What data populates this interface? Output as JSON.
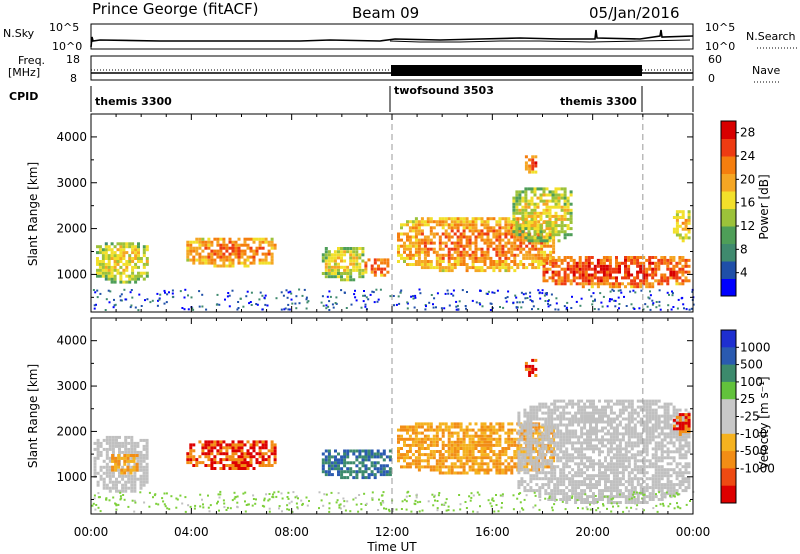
{
  "header": {
    "station": "Prince George (fitACF)",
    "beam": "Beam 09",
    "date": "05/Jan/2016"
  },
  "panels": {
    "nsky": {
      "label": "N.Sky",
      "left_ticks": [
        "10^5",
        "10^0"
      ],
      "right_label": "N.Search",
      "right_ticks": [
        "10^5",
        "10^0"
      ]
    },
    "freq": {
      "label_line1": "Freq.",
      "label_line2": "[MHz]",
      "left_ticks": [
        "18",
        "8"
      ],
      "right_label": "Nave",
      "right_ticks": [
        "60",
        "0"
      ]
    },
    "cpid": {
      "label": "CPID",
      "segments": [
        "themis 3300",
        "twofsound 3503",
        "themis 3300"
      ]
    }
  },
  "colors": {
    "power_scale": [
      "#0000ff",
      "#1f4fa8",
      "#3f8a6e",
      "#4e9e58",
      "#9cc23a",
      "#f2e02a",
      "#f5a623",
      "#f57e0e",
      "#ee3b12",
      "#d80000"
    ],
    "velocity_scale": [
      "#1e2fd0",
      "#2a5ab0",
      "#3c8a6c",
      "#62c23c",
      "#c8c8c8",
      "#c8c8c8",
      "#f5b21f",
      "#f28d15",
      "#ee4a12",
      "#dd0000"
    ],
    "ground_scatter": "#c0c0c0"
  },
  "chart_data": [
    {
      "type": "heatmap",
      "title": "Power",
      "ylabel": "Slant Range [km]",
      "xlabel": "Time UT",
      "x_ticks": [
        "00:00",
        "04:00",
        "08:00",
        "12:00",
        "16:00",
        "20:00",
        "00:00"
      ],
      "y_ticks": [
        1000,
        2000,
        3000,
        4000
      ],
      "ylim": [
        180,
        4500
      ],
      "xlim_hours": [
        0,
        24
      ],
      "colorbar": {
        "label": "Power [dB]",
        "ticks": [
          4,
          8,
          12,
          16,
          20,
          24,
          28
        ],
        "range": [
          0,
          30
        ]
      },
      "reference_lines_hours": [
        12,
        22
      ],
      "scatter_regions": [
        {
          "t0": 0.2,
          "t1": 2.3,
          "r0": 800,
          "r1": 1700,
          "level": 16
        },
        {
          "t0": 3.8,
          "t1": 7.4,
          "r0": 1150,
          "r1": 1800,
          "level": 22
        },
        {
          "t0": 9.2,
          "t1": 10.9,
          "r0": 850,
          "r1": 1600,
          "level": 16
        },
        {
          "t0": 10.9,
          "t1": 11.9,
          "r0": 950,
          "r1": 1350,
          "level": 24
        },
        {
          "t0": 12.2,
          "t1": 18.5,
          "r0": 1050,
          "r1": 2250,
          "level": 22
        },
        {
          "t0": 16.8,
          "t1": 19.2,
          "r0": 1700,
          "r1": 2900,
          "level": 16
        },
        {
          "t0": 17.3,
          "t1": 17.8,
          "r0": 3200,
          "r1": 3600,
          "level": 24
        },
        {
          "t0": 18.0,
          "t1": 23.9,
          "r0": 700,
          "r1": 1400,
          "level": 26
        },
        {
          "t0": 23.2,
          "t1": 23.9,
          "r0": 1700,
          "r1": 2400,
          "level": 18
        }
      ]
    },
    {
      "type": "heatmap",
      "title": "Velocity",
      "ylabel": "Slant Range [km]",
      "xlabel": "Time UT",
      "x_ticks": [
        "00:00",
        "04:00",
        "08:00",
        "12:00",
        "16:00",
        "20:00",
        "00:00"
      ],
      "y_ticks": [
        1000,
        2000,
        3000,
        4000
      ],
      "ylim": [
        180,
        4500
      ],
      "xlim_hours": [
        0,
        24
      ],
      "colorbar": {
        "label": "Velocity [m s⁻¹]",
        "ticks": [
          1000,
          500,
          100,
          25,
          -25,
          -100,
          -500,
          -1000
        ]
      },
      "reference_lines_hours": [
        12,
        22
      ],
      "scatter_regions": [
        {
          "t0": 0.1,
          "t1": 2.3,
          "r0": 650,
          "r1": 1900,
          "kind": "ground"
        },
        {
          "t0": 0.8,
          "t1": 1.9,
          "r0": 1050,
          "r1": 1500,
          "vel": -100
        },
        {
          "t0": 3.8,
          "t1": 7.4,
          "r0": 1150,
          "r1": 1800,
          "vel": -500
        },
        {
          "t0": 9.2,
          "t1": 12.0,
          "r0": 950,
          "r1": 1600,
          "vel": 100
        },
        {
          "t0": 12.2,
          "t1": 18.5,
          "r0": 1050,
          "r1": 2200,
          "vel": -100
        },
        {
          "t0": 17.0,
          "t1": 23.9,
          "r0": 400,
          "r1": 2700,
          "kind": "ground"
        },
        {
          "t0": 17.3,
          "t1": 17.8,
          "r0": 3200,
          "r1": 3600,
          "vel": -500
        },
        {
          "t0": 23.2,
          "t1": 23.9,
          "r0": 1900,
          "r1": 2400,
          "vel": -500
        }
      ]
    }
  ]
}
